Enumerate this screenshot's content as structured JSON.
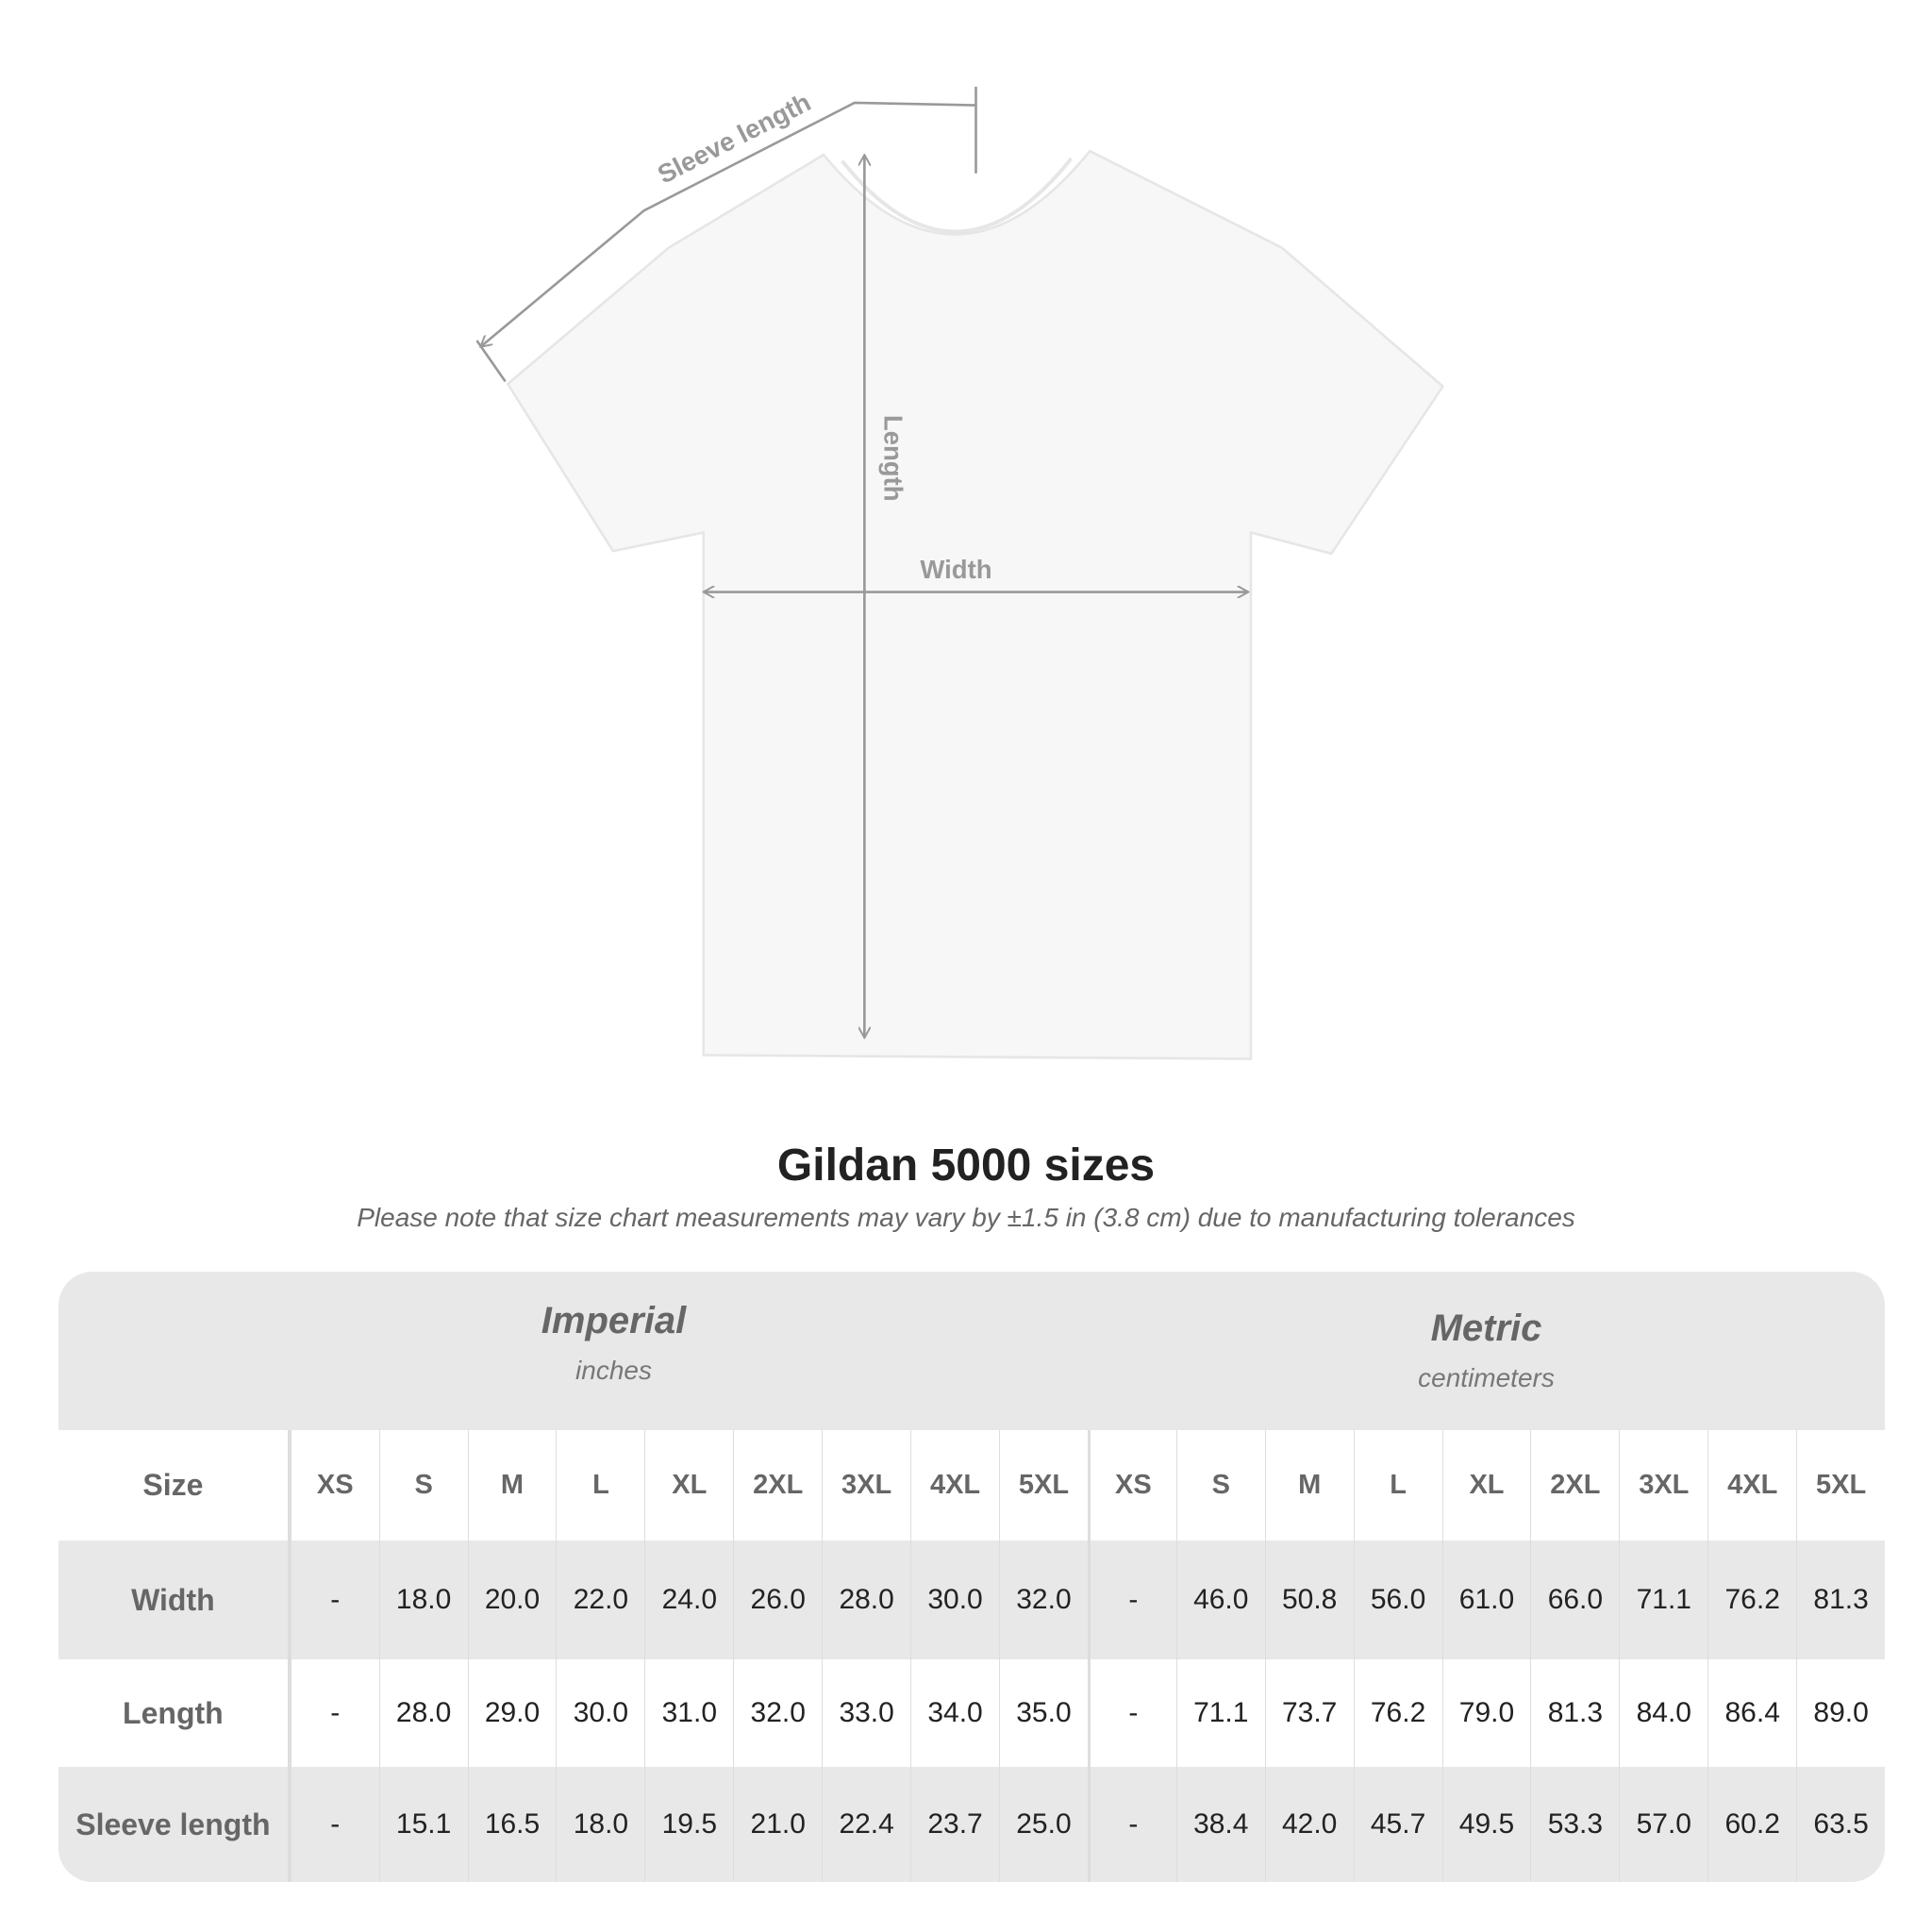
{
  "diagram": {
    "labels": {
      "sleeve": "Sleeve length",
      "length": "Length",
      "width": "Width"
    },
    "shirt_color": "#f7f7f7",
    "line_color": "#999999"
  },
  "title": "Gildan 5000 sizes",
  "subtitle": "Please note that size chart measurements may vary by ±1.5 in (3.8 cm) due to manufacturing tolerances",
  "table": {
    "imperial": {
      "name": "Imperial",
      "unit": "inches"
    },
    "metric": {
      "name": "Metric",
      "unit": "centimeters"
    },
    "size_label": "Size",
    "sizes": [
      "XS",
      "S",
      "M",
      "L",
      "XL",
      "2XL",
      "3XL",
      "4XL",
      "5XL"
    ],
    "rows": [
      {
        "label": "Width",
        "imperial": [
          "-",
          "18.0",
          "20.0",
          "22.0",
          "24.0",
          "26.0",
          "28.0",
          "30.0",
          "32.0"
        ],
        "metric": [
          "-",
          "46.0",
          "50.8",
          "56.0",
          "61.0",
          "66.0",
          "71.1",
          "76.2",
          "81.3"
        ]
      },
      {
        "label": "Length",
        "imperial": [
          "-",
          "28.0",
          "29.0",
          "30.0",
          "31.0",
          "32.0",
          "33.0",
          "34.0",
          "35.0"
        ],
        "metric": [
          "-",
          "71.1",
          "73.7",
          "76.2",
          "79.0",
          "81.3",
          "84.0",
          "86.4",
          "89.0"
        ]
      },
      {
        "label": "Sleeve length",
        "imperial": [
          "-",
          "15.1",
          "16.5",
          "18.0",
          "19.5",
          "21.0",
          "22.4",
          "23.7",
          "25.0"
        ],
        "metric": [
          "-",
          "38.4",
          "42.0",
          "45.7",
          "49.5",
          "53.3",
          "57.0",
          "60.2",
          "63.5"
        ]
      }
    ]
  }
}
